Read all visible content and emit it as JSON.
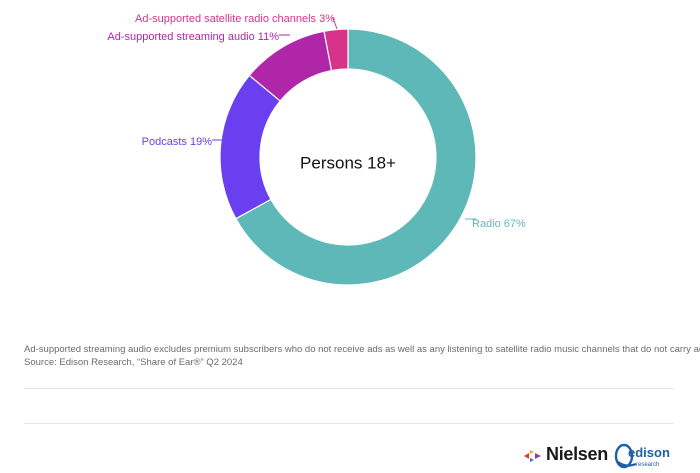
{
  "chart_data": {
    "type": "pie",
    "center_label": "Persons 18+",
    "slices": [
      {
        "label": "Radio 67%",
        "value": 67,
        "color": "#5fb8b8"
      },
      {
        "label": "Podcasts 19%",
        "value": 19,
        "color": "#6a3ff0"
      },
      {
        "label": "Ad-supported streaming audio 11%",
        "value": 11,
        "color": "#b026a8"
      },
      {
        "label": "Ad-supported satellite radio channels 3%",
        "value": 3,
        "color": "#d8338a"
      }
    ]
  },
  "footnote": {
    "line1": "Ad-supported streaming audio excludes premium subscribers who do not receive ads as well as any listening to satellite radio music channels that do not carry ads.",
    "line2": "Source: Edison Research, “Share of Ear®” Q2 2024"
  },
  "logos": {
    "nielsen": "Nielsen",
    "edison": "edison",
    "edison_sub": "research"
  }
}
